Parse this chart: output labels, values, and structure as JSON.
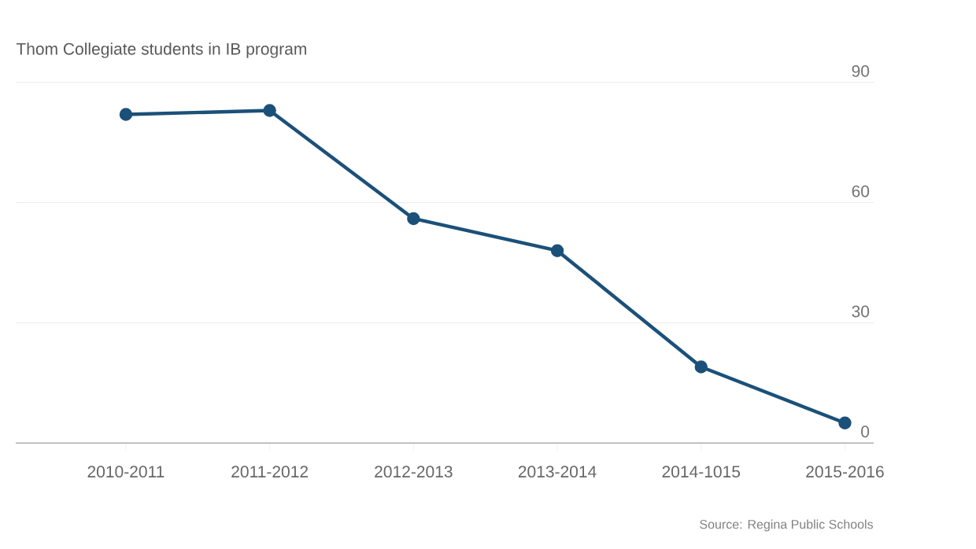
{
  "chart_data": {
    "type": "line",
    "title": "Thom Collegiate students in IB program",
    "categories": [
      "2010-2011",
      "2011-2012",
      "2012-2013",
      "2013-2014",
      "2014-1015",
      "2015-2016"
    ],
    "series": [
      {
        "color": "#1b5079",
        "values": [
          82,
          83,
          56,
          48,
          19,
          5
        ]
      }
    ],
    "ylim": [
      0,
      90
    ],
    "yticks": [
      0,
      30,
      60,
      90
    ],
    "grid": "y",
    "marker": "circle",
    "annotations": [
      "Source: Regina Public Schools"
    ]
  }
}
